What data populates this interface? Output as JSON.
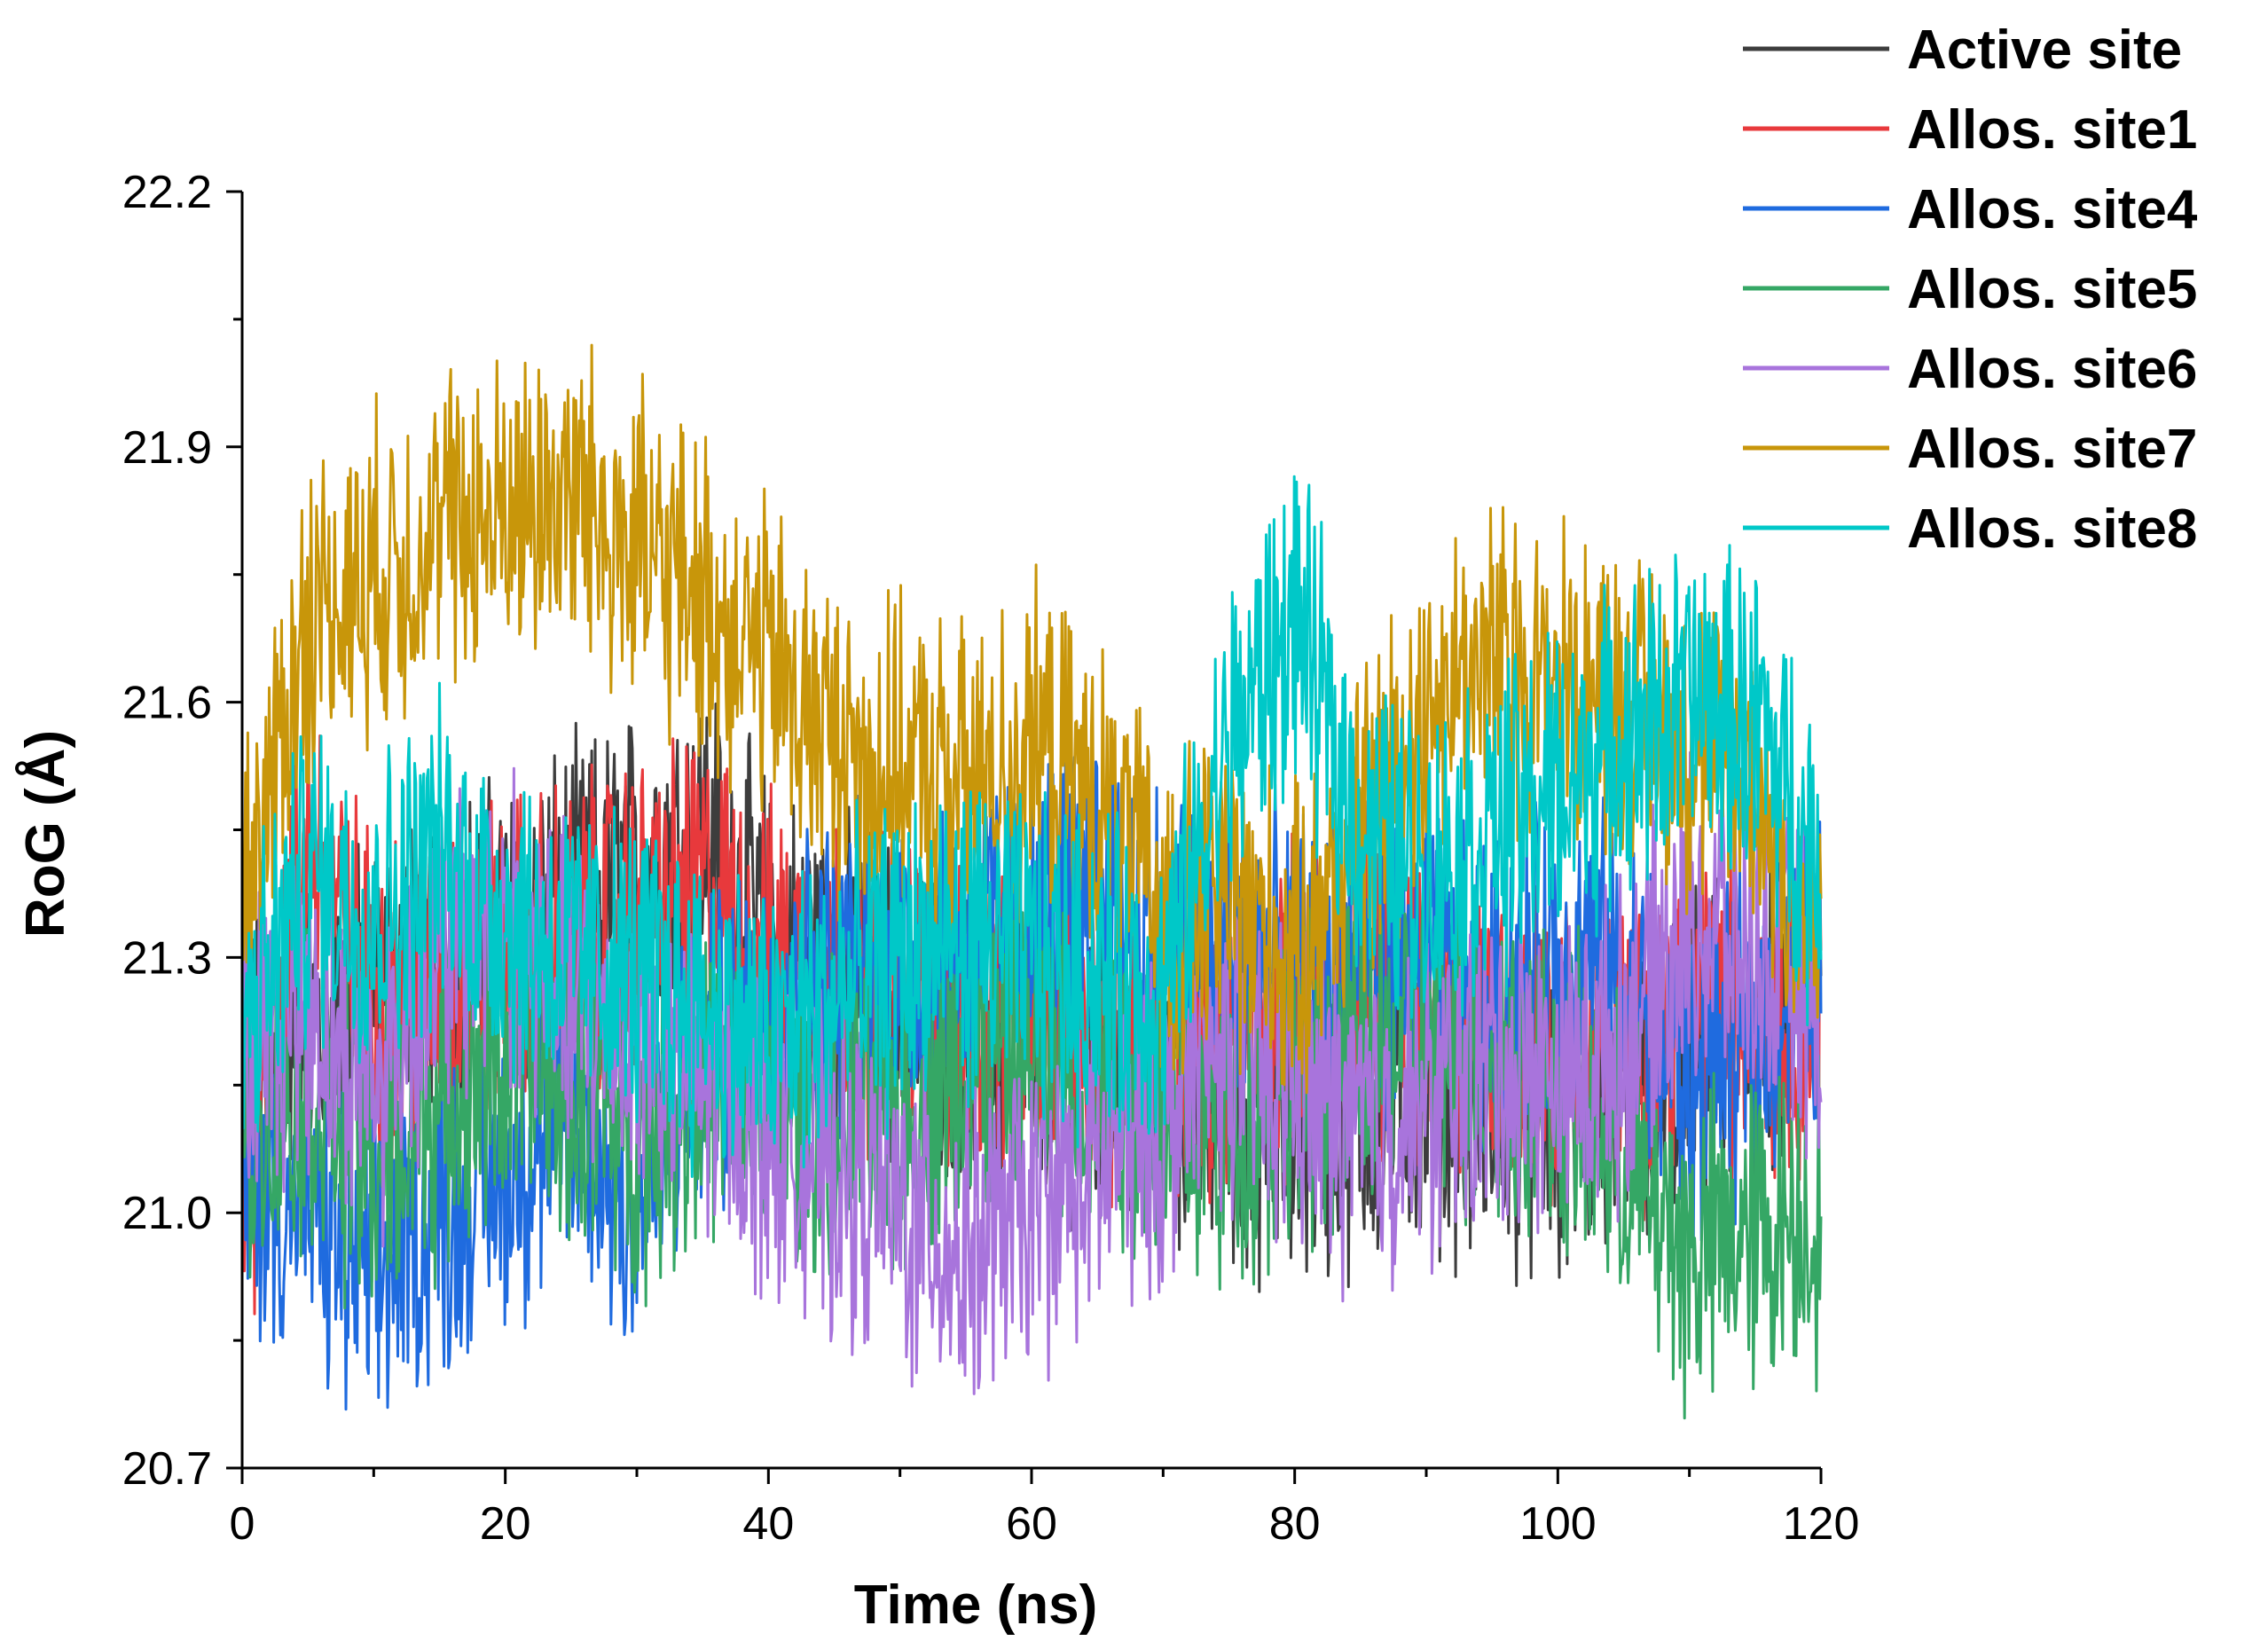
{
  "chart_data": {
    "type": "line",
    "title": "",
    "xlabel": "Time (ns)",
    "ylabel": "RoG (Å)",
    "xlim": [
      0,
      120
    ],
    "ylim": [
      20.7,
      22.2
    ],
    "xticks": [
      0,
      20,
      40,
      60,
      80,
      100,
      120
    ],
    "xtick_labels": [
      "0",
      "20",
      "40",
      "60",
      "80",
      "100",
      "120"
    ],
    "yticks": [
      20.7,
      21.0,
      21.3,
      21.6,
      21.9,
      22.2
    ],
    "ytick_labels": [
      "20.7",
      "21.0",
      "21.3",
      "21.6",
      "21.9",
      "22.2"
    ],
    "grid": false,
    "legend_position": "top-right",
    "series": [
      {
        "name": "Active site",
        "color": "#3d3d3d",
        "x": [
          0,
          5,
          10,
          15,
          20,
          25,
          30,
          35,
          40,
          45,
          50,
          55,
          60,
          65,
          70,
          75,
          80,
          85,
          90,
          95,
          100,
          105,
          110,
          115,
          120
        ],
        "values": [
          21.15,
          21.22,
          21.25,
          21.3,
          21.33,
          21.36,
          21.4,
          21.45,
          21.32,
          21.28,
          21.25,
          21.2,
          21.22,
          21.18,
          21.15,
          21.12,
          21.1,
          21.12,
          21.15,
          21.12,
          21.1,
          21.12,
          21.18,
          21.22,
          21.25
        ]
      },
      {
        "name": "Allos. site1",
        "color": "#e8393c",
        "x": [
          0,
          5,
          10,
          15,
          20,
          25,
          30,
          35,
          40,
          45,
          50,
          55,
          60,
          65,
          70,
          75,
          80,
          85,
          90,
          95,
          100,
          105,
          110,
          115,
          120
        ],
        "values": [
          21.0,
          21.45,
          21.25,
          21.28,
          21.3,
          21.32,
          21.35,
          21.38,
          21.3,
          21.28,
          21.26,
          21.24,
          21.25,
          21.22,
          21.2,
          21.22,
          21.25,
          21.28,
          21.25,
          21.22,
          21.2,
          21.18,
          21.25,
          21.22,
          21.25
        ]
      },
      {
        "name": "Allos. site4",
        "color": "#1f6bdf",
        "x": [
          0,
          5,
          10,
          15,
          20,
          25,
          30,
          35,
          40,
          45,
          50,
          55,
          60,
          65,
          70,
          75,
          80,
          85,
          90,
          95,
          100,
          105,
          110,
          115,
          120
        ],
        "values": [
          21.05,
          21.0,
          20.92,
          21.0,
          21.05,
          21.1,
          21.0,
          21.18,
          21.25,
          21.28,
          21.3,
          21.32,
          21.35,
          21.38,
          21.32,
          21.3,
          21.28,
          21.3,
          21.28,
          21.25,
          21.3,
          21.28,
          21.15,
          21.2,
          21.3
        ]
      },
      {
        "name": "Allos. site5",
        "color": "#35a765",
        "x": [
          0,
          5,
          10,
          15,
          20,
          25,
          30,
          35,
          40,
          45,
          50,
          55,
          60,
          65,
          70,
          75,
          80,
          85,
          90,
          95,
          100,
          105,
          110,
          115,
          120
        ],
        "values": [
          21.1,
          21.15,
          21.05,
          21.12,
          21.18,
          21.15,
          21.1,
          21.15,
          21.12,
          21.1,
          21.12,
          21.15,
          21.18,
          21.15,
          21.12,
          21.1,
          21.15,
          21.18,
          21.2,
          21.18,
          21.15,
          21.05,
          20.95,
          20.98,
          21.0
        ]
      },
      {
        "name": "Allos. site6",
        "color": "#a874dc",
        "x": [
          0,
          5,
          10,
          15,
          20,
          25,
          30,
          35,
          40,
          45,
          50,
          55,
          60,
          65,
          70,
          75,
          80,
          85,
          90,
          95,
          100,
          105,
          110,
          115,
          120
        ],
        "values": [
          21.2,
          21.25,
          21.15,
          21.3,
          21.35,
          21.25,
          21.2,
          21.15,
          21.1,
          21.05,
          21.0,
          20.95,
          21.0,
          21.05,
          21.1,
          21.2,
          21.15,
          21.1,
          21.12,
          21.18,
          21.15,
          21.2,
          21.35,
          21.3,
          21.25
        ]
      },
      {
        "name": "Allos. site7",
        "color": "#c8960a",
        "x": [
          0,
          5,
          10,
          15,
          20,
          25,
          30,
          35,
          40,
          45,
          50,
          55,
          60,
          65,
          70,
          75,
          80,
          85,
          90,
          95,
          100,
          105,
          110,
          115,
          120
        ],
        "values": [
          21.35,
          21.7,
          21.75,
          21.8,
          21.82,
          21.85,
          21.78,
          21.72,
          21.65,
          21.55,
          21.52,
          21.5,
          21.55,
          21.48,
          21.35,
          21.38,
          21.3,
          21.45,
          21.6,
          21.65,
          21.62,
          21.6,
          21.55,
          21.5,
          21.3
        ]
      },
      {
        "name": "Allos. site8",
        "color": "#00c8c8",
        "x": [
          0,
          5,
          10,
          15,
          20,
          25,
          30,
          35,
          40,
          45,
          50,
          55,
          60,
          65,
          70,
          75,
          80,
          85,
          90,
          95,
          100,
          105,
          110,
          115,
          120
        ],
        "values": [
          21.2,
          21.4,
          21.35,
          21.42,
          21.35,
          21.3,
          21.28,
          21.25,
          21.2,
          21.25,
          21.3,
          21.32,
          21.3,
          21.28,
          21.25,
          21.55,
          21.7,
          21.45,
          21.4,
          21.45,
          21.5,
          21.55,
          21.6,
          21.58,
          21.4
        ]
      }
    ]
  }
}
